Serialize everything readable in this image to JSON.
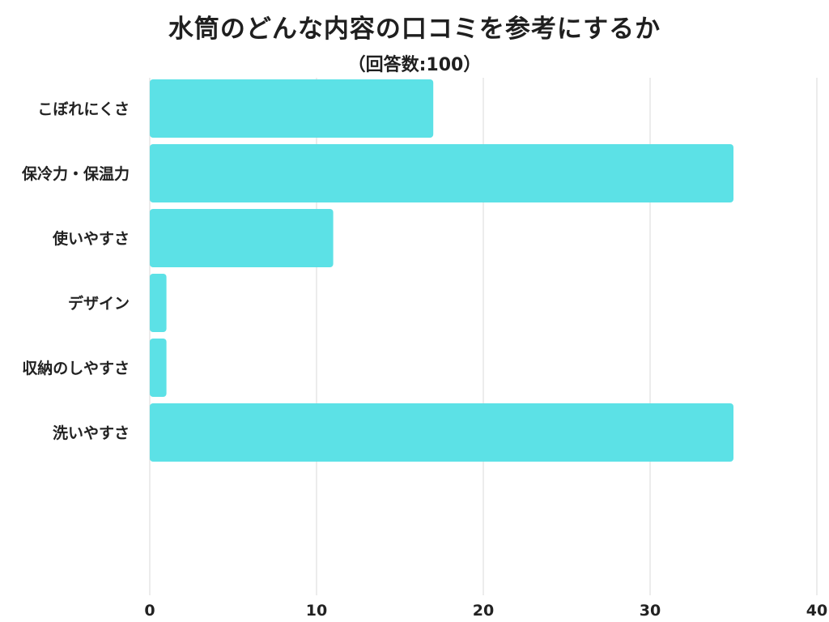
{
  "chart_data": {
    "type": "bar",
    "orientation": "horizontal",
    "title": "水筒のどんな内容の口コミを参考にするか",
    "subtitle": "（回答数:100）",
    "xlabel": "",
    "ylabel": "",
    "categories": [
      "こぼれにくさ",
      "保冷力・保温力",
      "使いやすさ",
      "デザイン",
      "収納のしやすさ",
      "洗いやすさ"
    ],
    "values": [
      17,
      35,
      11,
      1,
      1,
      35
    ],
    "xlim": [
      0,
      40
    ],
    "xticks": [
      0,
      10,
      20,
      30,
      40
    ],
    "grid": "vertical",
    "bar_color": "#5ce1e6",
    "legend": "none"
  }
}
